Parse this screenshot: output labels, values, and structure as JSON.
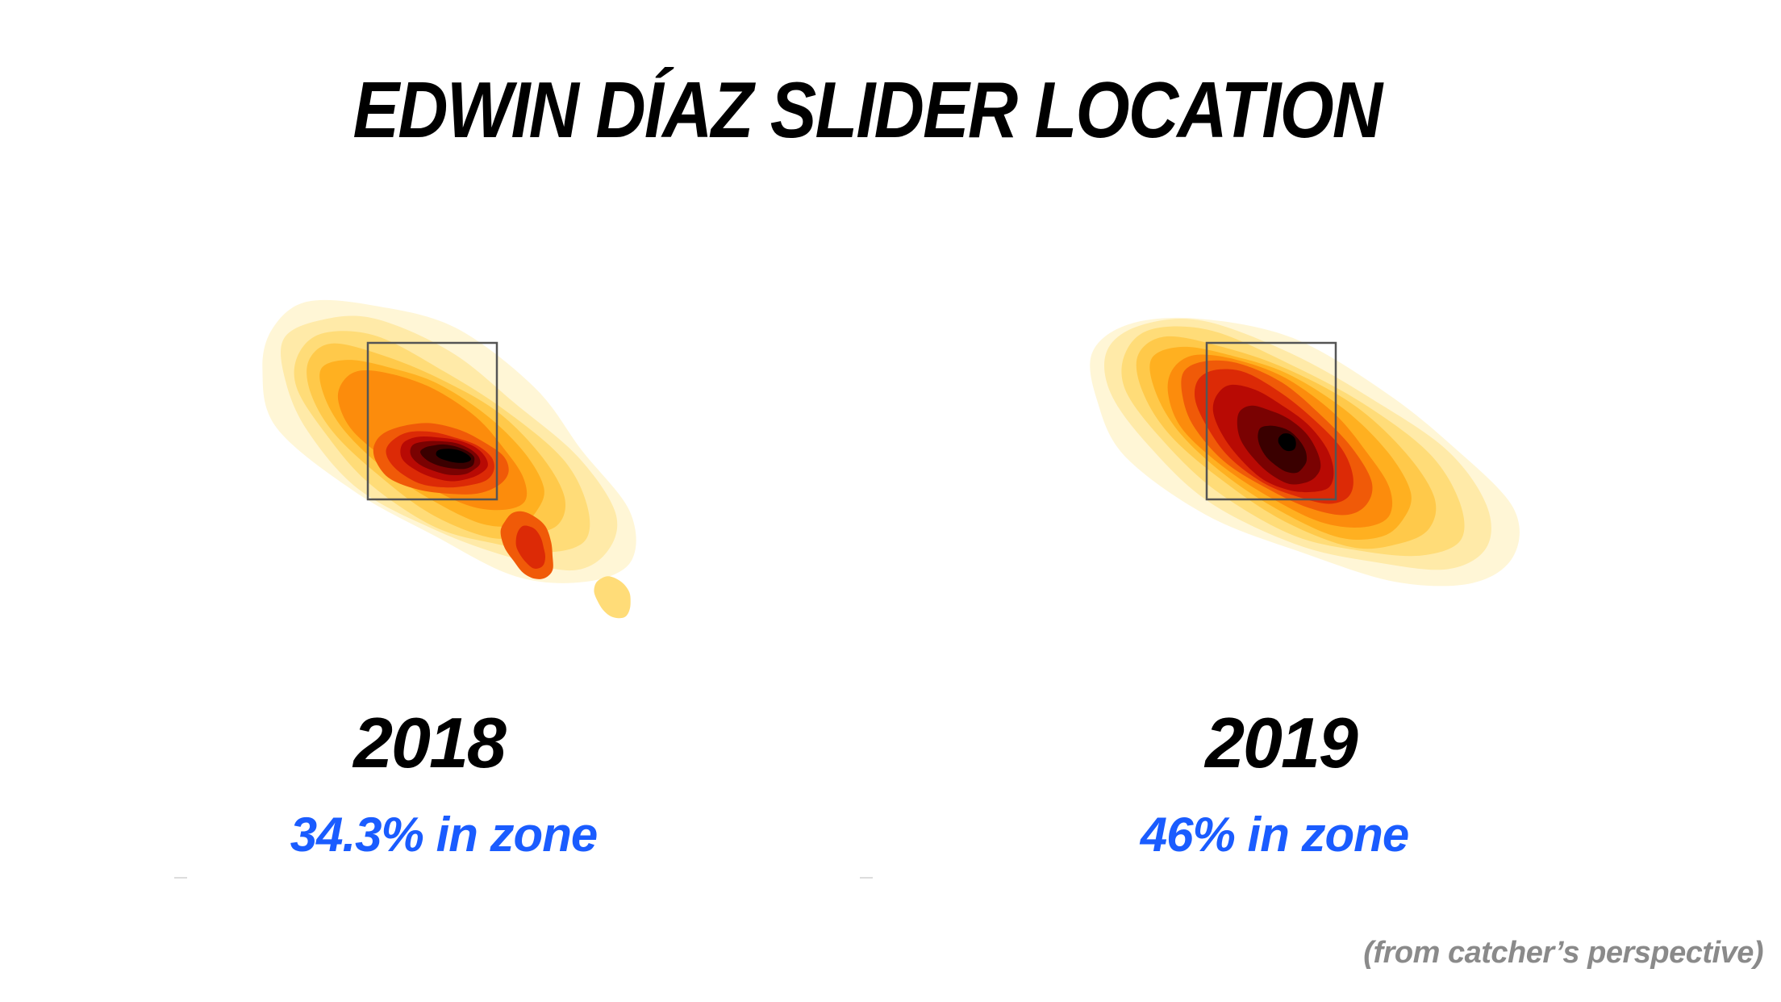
{
  "title": "EDWIN DÍAZ SLIDER LOCATION",
  "footnote": "(from catcher’s perspective)",
  "colors": {
    "zone_text": "#1a5cff",
    "heat_scale": [
      "#fff6d6",
      "#ffeaa8",
      "#ffdc78",
      "#ffc94a",
      "#ffb020",
      "#fc8c0c",
      "#f05a08",
      "#dc2a06",
      "#b80a04",
      "#7a0202",
      "#3a0000",
      "#000000"
    ],
    "strike_zone_border": "#555555"
  },
  "chart_data": [
    {
      "type": "heatmap",
      "year": "2018",
      "zone_label": "34.3% in zone",
      "in_zone_pct": 34.3,
      "grid": false,
      "legend": "none"
    },
    {
      "type": "heatmap",
      "year": "2019",
      "zone_label": "46% in zone",
      "in_zone_pct": 46,
      "grid": false,
      "legend": "none"
    }
  ]
}
